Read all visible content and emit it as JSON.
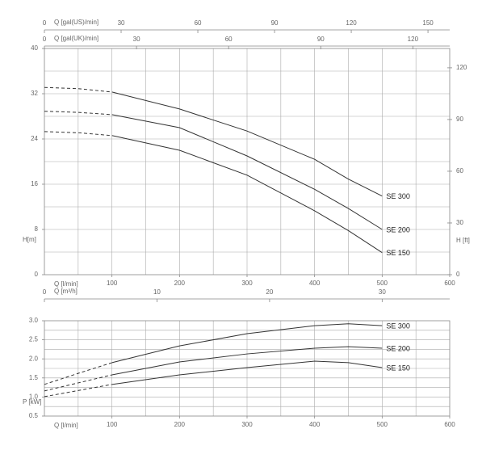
{
  "chart_data": [
    {
      "type": "line",
      "xlabel": "Q [l/min]",
      "ylabel": "H[m]",
      "y2label": "H [ft]",
      "xlim": [
        0,
        600
      ],
      "xticks": [
        100,
        200,
        300,
        400,
        500,
        600
      ],
      "xgrid": [
        50,
        100,
        150,
        200,
        250,
        300,
        350,
        400,
        450,
        500,
        550
      ],
      "ylim": [
        0,
        40
      ],
      "yticks": [
        0,
        8,
        16,
        24,
        32,
        40
      ],
      "ygrid": [
        4,
        8,
        12,
        16,
        20,
        24,
        28,
        32,
        36
      ],
      "y2lim": [
        0,
        131.2
      ],
      "y2ticks": [
        0,
        30,
        60,
        90,
        120
      ],
      "extra_x_axes": [
        {
          "label": "Q [gal(US)/min]",
          "xlim": [
            0,
            158.5
          ],
          "xticks": [
            0,
            30,
            60,
            90,
            120,
            150
          ]
        },
        {
          "label": "Q [gal(UK)/min]",
          "xlim": [
            0,
            132
          ],
          "xticks": [
            0,
            30,
            60,
            90,
            120
          ]
        }
      ],
      "x": [
        0,
        50,
        100,
        200,
        300,
        400,
        450,
        500
      ],
      "series": [
        {
          "name": "SE 300",
          "color": "#333333",
          "values": [
            33.1,
            32.9,
            32.3,
            29.3,
            25.4,
            20.4,
            16.9,
            13.9
          ]
        },
        {
          "name": "SE 200",
          "color": "#333333",
          "values": [
            28.9,
            28.7,
            28.3,
            26,
            21,
            15.1,
            11.7,
            8
          ]
        },
        {
          "name": "SE 150",
          "color": "#333333",
          "values": [
            25.3,
            25.1,
            24.6,
            22,
            17.6,
            11.3,
            7.8,
            3.9
          ]
        }
      ]
    },
    {
      "type": "line",
      "xlabel": "Q [l/min]",
      "ylabel": "P [kW]",
      "xlim": [
        0,
        600
      ],
      "xticks": [
        100,
        200,
        300,
        400,
        500,
        600
      ],
      "xgrid": [
        50,
        100,
        150,
        200,
        250,
        300,
        350,
        400,
        450,
        500,
        550
      ],
      "ylim": [
        0.5,
        3.0
      ],
      "yticks": [
        0.5,
        {
          "value": 1,
          "label": "1.0"
        },
        1.5,
        {
          "value": 2,
          "label": "2.0"
        },
        2.5,
        {
          "value": 3,
          "label": "3.0"
        }
      ],
      "ygrid": [
        0.75,
        1,
        1.25,
        1.5,
        1.75,
        2,
        2.25,
        2.5,
        2.75
      ],
      "extra_x_axes": [
        {
          "label": "Q [m³/h]",
          "xlim": [
            0,
            36
          ],
          "xticks": [
            0,
            10,
            20,
            30
          ]
        }
      ],
      "x": [
        0,
        50,
        100,
        200,
        300,
        400,
        450,
        500
      ],
      "series": [
        {
          "name": "SE 300",
          "color": "#333333",
          "values": [
            1.33,
            1.62,
            1.9,
            2.34,
            2.66,
            2.87,
            2.92,
            2.87
          ]
        },
        {
          "name": "SE 200",
          "color": "#333333",
          "values": [
            1.16,
            1.37,
            1.58,
            1.92,
            2.13,
            2.28,
            2.32,
            2.28
          ]
        },
        {
          "name": "SE 150",
          "color": "#333333",
          "values": [
            1.01,
            1.17,
            1.33,
            1.58,
            1.77,
            1.94,
            1.9,
            1.77
          ]
        }
      ]
    }
  ]
}
